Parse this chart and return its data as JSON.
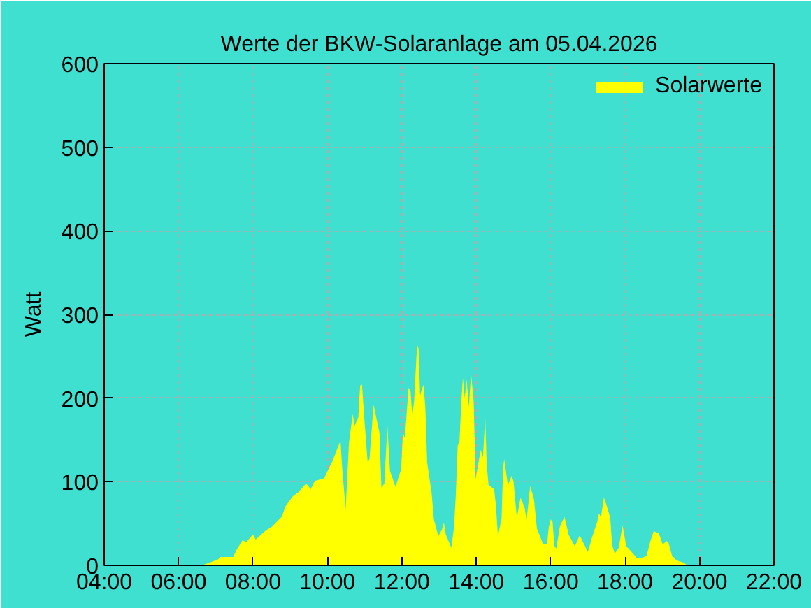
{
  "chart_data": {
    "type": "area",
    "title": "Werte der BKW-Solaranlage am 05.04.2026",
    "ylabel": "Watt",
    "x": [
      6.62,
      6.76,
      7.06,
      7.12,
      7.47,
      7.55,
      7.72,
      7.82,
      8.0,
      8.07,
      8.35,
      8.5,
      8.77,
      8.88,
      9.06,
      9.23,
      9.43,
      9.55,
      9.66,
      9.91,
      10.13,
      10.35,
      10.4,
      10.49,
      10.58,
      10.68,
      10.73,
      10.83,
      10.88,
      10.93,
      10.98,
      11.08,
      11.13,
      11.24,
      11.4,
      11.45,
      11.53,
      11.61,
      11.68,
      11.83,
      11.98,
      12.03,
      12.08,
      12.18,
      12.23,
      12.28,
      12.33,
      12.41,
      12.45,
      12.49,
      12.58,
      12.63,
      12.68,
      12.8,
      12.86,
      12.98,
      13.08,
      13.13,
      13.18,
      13.33,
      13.4,
      13.45,
      13.5,
      13.55,
      13.6,
      13.64,
      13.69,
      13.74,
      13.8,
      13.86,
      13.93,
      13.98,
      14.12,
      14.18,
      14.24,
      14.28,
      14.33,
      14.48,
      14.53,
      14.58,
      14.68,
      14.72,
      14.75,
      14.85,
      14.95,
      15.0,
      15.09,
      15.19,
      15.3,
      15.35,
      15.45,
      15.55,
      15.63,
      15.8,
      15.9,
      15.95,
      16.0,
      16.05,
      16.1,
      16.15,
      16.25,
      16.37,
      16.48,
      16.65,
      16.78,
      16.9,
      17.0,
      17.1,
      17.25,
      17.3,
      17.35,
      17.43,
      17.5,
      17.6,
      17.65,
      17.72,
      17.83,
      17.93,
      18.03,
      18.16,
      18.31,
      18.47,
      18.58,
      18.68,
      18.77,
      18.91,
      19.01,
      19.11,
      19.16,
      19.26,
      19.38,
      19.59,
      19.66
    ],
    "series": [
      {
        "name": "Solarwerte",
        "color": "#ffff00",
        "values": [
          0,
          2,
          7,
          10,
          10,
          18,
          30,
          28,
          37,
          31,
          42,
          46,
          58,
          71,
          82,
          88,
          98,
          91,
          101,
          104,
          124,
          149,
          114,
          67,
          147,
          181,
          167,
          177,
          215,
          216,
          182,
          124,
          127,
          192,
          158,
          93,
          98,
          167,
          113,
          94,
          115,
          159,
          152,
          212,
          210,
          179,
          196,
          264,
          259,
          203,
          216,
          190,
          123,
          86,
          55,
          35,
          43,
          51,
          37,
          21,
          45,
          84,
          143,
          149,
          197,
          224,
          200,
          222,
          189,
          229,
          196,
          103,
          138,
          129,
          177,
          121,
          96,
          91,
          71,
          35,
          56,
          115,
          127,
          96,
          107,
          101,
          57,
          81,
          69,
          54,
          95,
          79,
          44,
          25,
          25,
          46,
          55,
          52,
          23,
          20,
          47,
          58,
          37,
          23,
          36,
          25,
          16,
          32,
          52,
          62,
          57,
          81,
          72,
          57,
          25,
          14,
          21,
          48,
          23,
          17,
          9,
          9,
          12,
          29,
          41,
          38,
          25,
          29,
          28,
          12,
          6,
          3,
          0
        ]
      }
    ],
    "xlim": [
      4,
      22
    ],
    "ylim": [
      0,
      600
    ],
    "xticks": [
      {
        "value": 4,
        "label": "04:00"
      },
      {
        "value": 6,
        "label": "06:00"
      },
      {
        "value": 8,
        "label": "08:00"
      },
      {
        "value": 10,
        "label": "10:00"
      },
      {
        "value": 12,
        "label": "12:00"
      },
      {
        "value": 14,
        "label": "14:00"
      },
      {
        "value": 16,
        "label": "16:00"
      },
      {
        "value": 18,
        "label": "18:00"
      },
      {
        "value": 20,
        "label": "20:00"
      },
      {
        "value": 22,
        "label": "22:00"
      }
    ],
    "yticks": [
      0,
      100,
      200,
      300,
      400,
      500,
      600
    ],
    "grid": true,
    "legend": "top right"
  }
}
